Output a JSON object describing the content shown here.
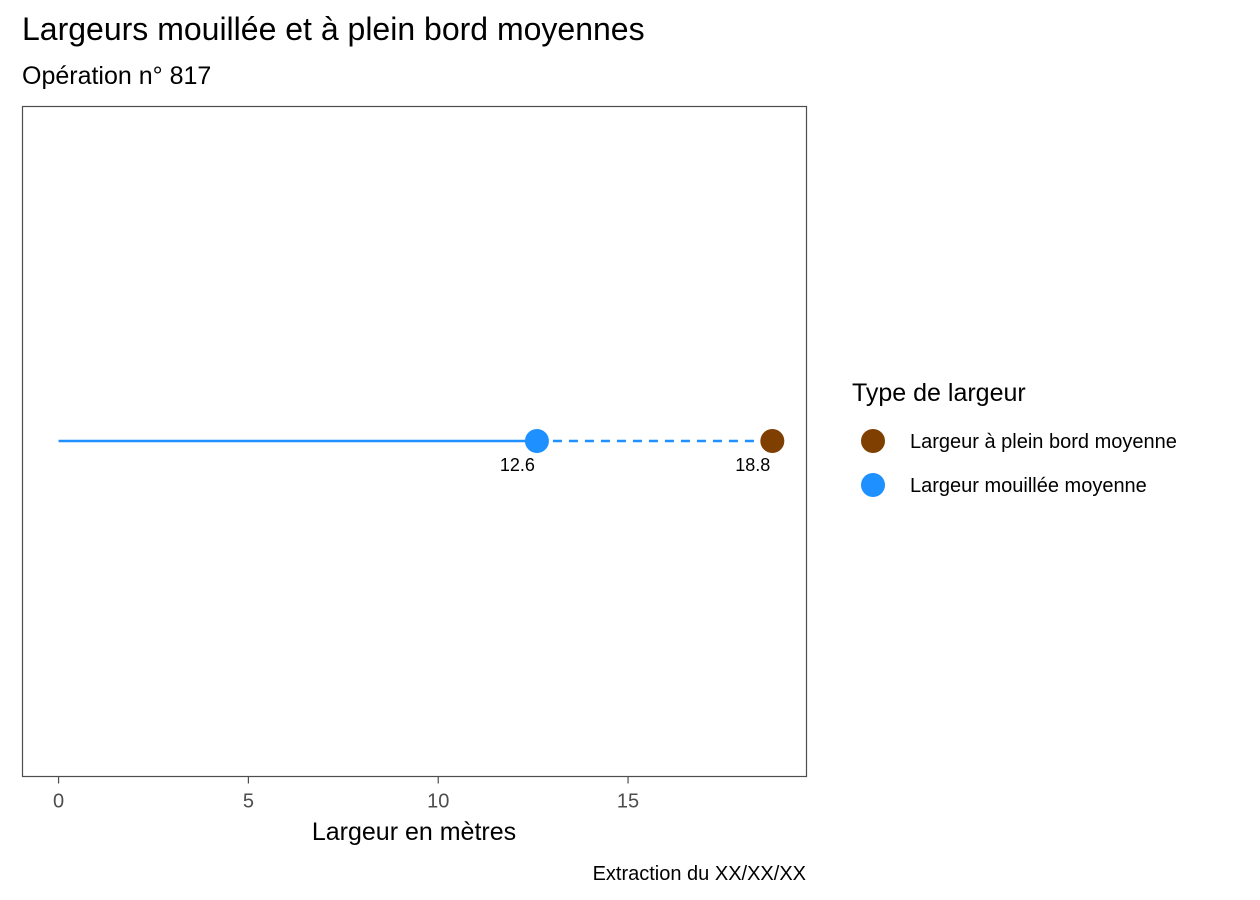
{
  "chart_data": {
    "type": "lollipop",
    "title": "Largeurs mouillée et à plein bord moyennes",
    "subtitle": "Opération n° 817",
    "xlabel": "Largeur en mètres",
    "ylabel": "",
    "caption": "Extraction du XX/XX/XX",
    "xlim": [
      -0.95,
      19.7
    ],
    "xticks": [
      0,
      5,
      10,
      15
    ],
    "xtick_labels": [
      "0",
      "5",
      "10",
      "15"
    ],
    "grid": false,
    "legend": {
      "title": "Type de largeur",
      "position": "right",
      "entries": [
        {
          "label": "Largeur à plein bord moyenne",
          "color": "#7f3f00"
        },
        {
          "label": "Largeur mouillée moyenne",
          "color": "#1e90ff"
        }
      ]
    },
    "series": [
      {
        "name": "Largeur mouillée moyenne",
        "value": 12.6,
        "label": "12.6",
        "color": "#1e90ff"
      },
      {
        "name": "Largeur à plein bord moyenne",
        "value": 18.8,
        "label": "18.8",
        "color": "#7f3f00"
      }
    ],
    "segments": [
      {
        "from": 0,
        "to": 12.6,
        "style": "solid",
        "color": "#1e90ff"
      },
      {
        "from": 12.6,
        "to": 18.8,
        "style": "dashed",
        "color": "#1e90ff"
      }
    ]
  }
}
